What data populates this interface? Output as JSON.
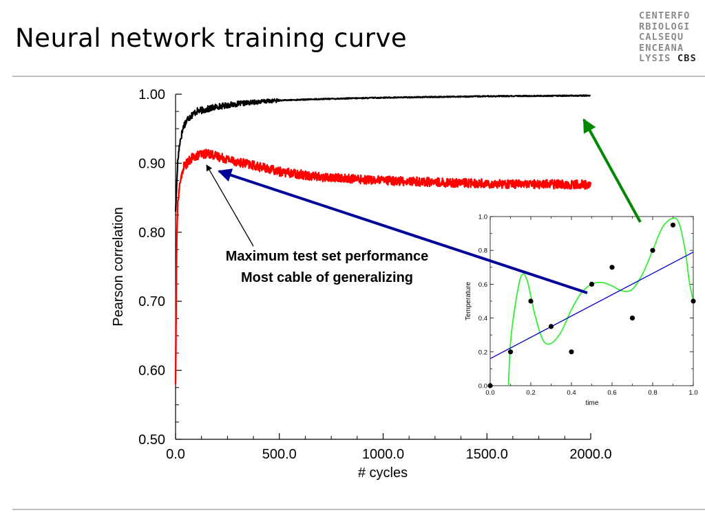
{
  "slide": {
    "title": "Neural network training curve",
    "logo_lines": [
      "CENTERFO",
      "RBIOLOGI",
      "CALSEQU",
      "ENCEANA",
      "LYSIS "
    ],
    "logo_emph": "CBS"
  },
  "chart_data": [
    {
      "type": "line",
      "xlabel": "# cycles",
      "ylabel": "Pearson correlation",
      "xlim": [
        0,
        2000
      ],
      "ylim": [
        0.5,
        1.0
      ],
      "x_ticks": [
        "0.0",
        "500.0",
        "1000.0",
        "1500.0",
        "2000.0"
      ],
      "y_ticks": [
        "0.50",
        "0.60",
        "0.70",
        "0.80",
        "0.90",
        "1.00"
      ],
      "grid": false,
      "series": [
        {
          "color": "#000000",
          "x": [
            0,
            10,
            20,
            40,
            60,
            100,
            150,
            200,
            300,
            400,
            500,
            700,
            1000,
            1500,
            2000
          ],
          "y": [
            0.83,
            0.9,
            0.93,
            0.955,
            0.965,
            0.975,
            0.978,
            0.982,
            0.986,
            0.989,
            0.991,
            0.993,
            0.995,
            0.997,
            0.998
          ]
        },
        {
          "color": "#ff0000",
          "x": [
            0,
            5,
            10,
            20,
            40,
            80,
            120,
            160,
            200,
            300,
            400,
            500,
            700,
            1000,
            1300,
            1600,
            2000
          ],
          "y": [
            0.58,
            0.78,
            0.84,
            0.87,
            0.895,
            0.908,
            0.913,
            0.914,
            0.91,
            0.902,
            0.895,
            0.888,
            0.88,
            0.875,
            0.872,
            0.87,
            0.869
          ]
        }
      ],
      "annotation": [
        "Maximum test set performance",
        "Most cable of generalizing"
      ],
      "annotation_target": {
        "x": 150,
        "y": 0.914
      }
    },
    {
      "type": "scatter",
      "xlabel": "time",
      "ylabel": "Temperature",
      "xlim": [
        0,
        1.0
      ],
      "ylim": [
        0,
        1.0
      ],
      "x_ticks": [
        "0.0",
        "0.2",
        "0.4",
        "0.6",
        "0.8",
        "1.0"
      ],
      "y_ticks": [
        "0.0",
        "0.2",
        "0.4",
        "0.6",
        "0.8",
        "1.0"
      ],
      "points": {
        "x": [
          0.0,
          0.1,
          0.2,
          0.3,
          0.4,
          0.5,
          0.6,
          0.7,
          0.8,
          0.9,
          1.0
        ],
        "y": [
          0.0,
          0.2,
          0.5,
          0.35,
          0.2,
          0.6,
          0.7,
          0.4,
          0.8,
          0.95,
          0.5
        ]
      },
      "fit_line": {
        "color": "#0000cc",
        "x": [
          0.0,
          1.0
        ],
        "y": [
          0.16,
          0.79
        ]
      },
      "poly_fit": {
        "color": "#33ee33",
        "x": [
          0.09,
          0.1,
          0.12,
          0.15,
          0.18,
          0.22,
          0.26,
          0.3,
          0.35,
          0.4,
          0.45,
          0.5,
          0.55,
          0.6,
          0.65,
          0.7,
          0.75,
          0.8,
          0.85,
          0.9,
          0.93,
          0.96,
          0.98,
          1.0
        ],
        "y": [
          0.0,
          0.25,
          0.45,
          0.64,
          0.63,
          0.42,
          0.27,
          0.25,
          0.32,
          0.45,
          0.55,
          0.6,
          0.61,
          0.59,
          0.56,
          0.57,
          0.66,
          0.8,
          0.94,
          0.99,
          0.96,
          0.8,
          0.62,
          0.5
        ]
      }
    }
  ],
  "arrows": {
    "blue_color": "#000099",
    "green_color": "#008800"
  }
}
